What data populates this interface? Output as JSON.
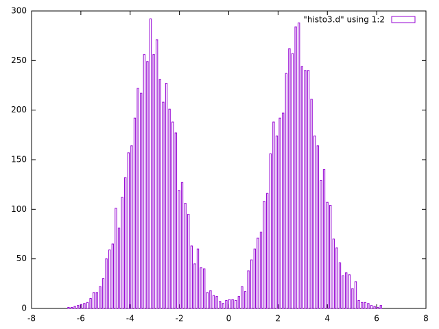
{
  "chart_data": {
    "type": "histogram-boxes",
    "legend": "\"histo3.d\" using 1:2",
    "legend_position": "top-right",
    "color": "#9400d3",
    "xlim": [
      -8,
      8
    ],
    "xticks": [
      -8,
      -6,
      -4,
      -2,
      0,
      2,
      4,
      6,
      8
    ],
    "ylim": [
      0,
      300
    ],
    "yticks": [
      0,
      50,
      100,
      150,
      200,
      250,
      300
    ],
    "x": [
      -6.5,
      -6.372,
      -6.244,
      -6.116,
      -5.988,
      -5.86,
      -5.732,
      -5.604,
      -5.476,
      -5.348,
      -5.22,
      -5.092,
      -4.964,
      -4.836,
      -4.708,
      -4.58,
      -4.452,
      -4.324,
      -4.196,
      -4.068,
      -3.94,
      -3.812,
      -3.684,
      -3.556,
      -3.428,
      -3.3,
      -3.172,
      -3.044,
      -2.916,
      -2.788,
      -2.66,
      -2.532,
      -2.404,
      -2.276,
      -2.148,
      -2.02,
      -1.892,
      -1.764,
      -1.636,
      -1.508,
      -1.38,
      -1.252,
      -1.124,
      -0.996,
      -0.868,
      -0.74,
      -0.612,
      -0.484,
      -0.356,
      -0.228,
      -0.1,
      0.028,
      0.156,
      0.284,
      0.412,
      0.54,
      0.668,
      0.796,
      0.924,
      1.052,
      1.18,
      1.308,
      1.436,
      1.564,
      1.692,
      1.82,
      1.948,
      2.076,
      2.204,
      2.332,
      2.46,
      2.588,
      2.716,
      2.844,
      2.972,
      3.1,
      3.228,
      3.356,
      3.484,
      3.612,
      3.74,
      3.868,
      3.996,
      4.124,
      4.252,
      4.38,
      4.508,
      4.636,
      4.764,
      4.892,
      5.02,
      5.148,
      5.276,
      5.404,
      5.532,
      5.66,
      5.788,
      5.916,
      6.044,
      6.172
    ],
    "values": [
      1,
      1,
      2,
      3,
      4,
      5,
      6,
      10,
      16,
      16,
      22,
      30,
      50,
      59,
      65,
      101,
      81,
      112,
      132,
      157,
      164,
      192,
      222,
      217,
      256,
      249,
      292,
      256,
      271,
      231,
      208,
      227,
      201,
      188,
      177,
      119,
      127,
      106,
      95,
      63,
      45,
      60,
      41,
      40,
      16,
      18,
      13,
      12,
      7,
      5,
      8,
      9,
      9,
      8,
      12,
      22,
      17,
      38,
      49,
      60,
      71,
      77,
      108,
      116,
      156,
      188,
      174,
      192,
      197,
      237,
      262,
      257,
      284,
      288,
      244,
      240,
      240,
      211,
      174,
      164,
      129,
      140,
      107,
      104,
      70,
      61,
      46,
      33,
      36,
      34,
      20,
      27,
      8,
      6,
      6,
      5,
      3,
      2,
      1,
      3
    ]
  }
}
